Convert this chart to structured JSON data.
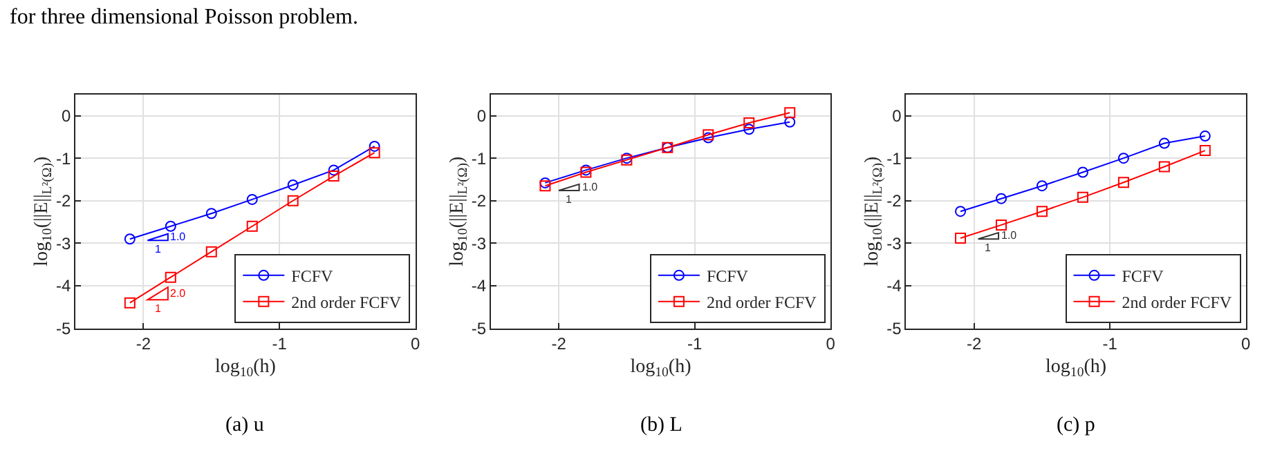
{
  "chart_data": [
    {
      "type": "line",
      "xlabel": "log$_{10}$(h)",
      "ylabel": "log$_{10}$(||E||$_{L²(Ω)}$)",
      "xlim": [
        -2.5,
        0
      ],
      "xticks": [
        -2,
        -1,
        0
      ],
      "ylim": [
        -5,
        0.5
      ],
      "yticks": [
        -5,
        -4,
        -3,
        -2,
        -1,
        0
      ],
      "grid": true,
      "legend": "bottom right",
      "series": [
        {
          "name": "FCFV",
          "color": "#0000ff",
          "marker": "circle",
          "x": [
            -2.1,
            -1.8,
            -1.5,
            -1.2,
            -0.9,
            -0.6,
            -0.3
          ],
          "values": [
            -2.9,
            -2.6,
            -2.3,
            -1.97,
            -1.63,
            -1.28,
            -0.72
          ]
        },
        {
          "name": "2nd order FCFV",
          "color": "#ff0000",
          "marker": "square",
          "x": [
            -2.1,
            -1.8,
            -1.5,
            -1.2,
            -0.9,
            -0.6,
            -0.3
          ],
          "values": [
            -4.4,
            -3.8,
            -3.2,
            -2.6,
            -2.0,
            -1.42,
            -0.87
          ]
        }
      ],
      "annotations": [
        "1.0",
        "1",
        "2.0",
        "1",
        "for three dimensional Poisson problem.",
        "(a) u"
      ]
    },
    {
      "type": "line",
      "xlabel": "log$_{10}$(h)",
      "ylabel": "log$_{10}$(||E||$_{L²(Ω)}$)",
      "xlim": [
        -2.5,
        0
      ],
      "xticks": [
        -2,
        -1,
        0
      ],
      "ylim": [
        -5,
        0.5
      ],
      "yticks": [
        -5,
        -4,
        -3,
        -2,
        -1,
        0
      ],
      "grid": true,
      "legend": "bottom right",
      "series": [
        {
          "name": "FCFV",
          "color": "#0000ff",
          "marker": "circle",
          "x": [
            -2.1,
            -1.8,
            -1.5,
            -1.2,
            -0.9,
            -0.6,
            -0.3
          ],
          "values": [
            -1.58,
            -1.28,
            -1.0,
            -0.75,
            -0.52,
            -0.32,
            -0.15
          ]
        },
        {
          "name": "2nd order FCFV",
          "color": "#ff0000",
          "marker": "square",
          "x": [
            -2.1,
            -1.8,
            -1.5,
            -1.2,
            -0.9,
            -0.6,
            -0.3
          ],
          "values": [
            -1.65,
            -1.33,
            -1.04,
            -0.75,
            -0.45,
            -0.17,
            0.07
          ]
        }
      ],
      "annotations": [
        "1.0",
        "1",
        "(b) L"
      ]
    },
    {
      "type": "line",
      "xlabel": "log$_{10}$(h)",
      "ylabel": "log$_{10}$(||E||$_{L²(Ω)}$)",
      "xlim": [
        -2.5,
        0
      ],
      "xticks": [
        -2,
        -1,
        0
      ],
      "ylim": [
        -5,
        0.5
      ],
      "yticks": [
        -5,
        -4,
        -3,
        -2,
        -1,
        0
      ],
      "grid": true,
      "legend": "bottom right",
      "series": [
        {
          "name": "FCFV",
          "color": "#0000ff",
          "marker": "circle",
          "x": [
            -2.1,
            -1.8,
            -1.5,
            -1.2,
            -0.9,
            -0.6,
            -0.3
          ],
          "values": [
            -2.25,
            -1.95,
            -1.65,
            -1.33,
            -1.0,
            -0.65,
            -0.48
          ]
        },
        {
          "name": "2nd order FCFV",
          "color": "#ff0000",
          "marker": "square",
          "x": [
            -2.1,
            -1.8,
            -1.5,
            -1.2,
            -0.9,
            -0.6,
            -0.3
          ],
          "values": [
            -2.88,
            -2.57,
            -2.25,
            -1.92,
            -1.57,
            -1.2,
            -0.82
          ]
        }
      ],
      "annotations": [
        "1.0",
        "1",
        "(c) p"
      ]
    }
  ]
}
